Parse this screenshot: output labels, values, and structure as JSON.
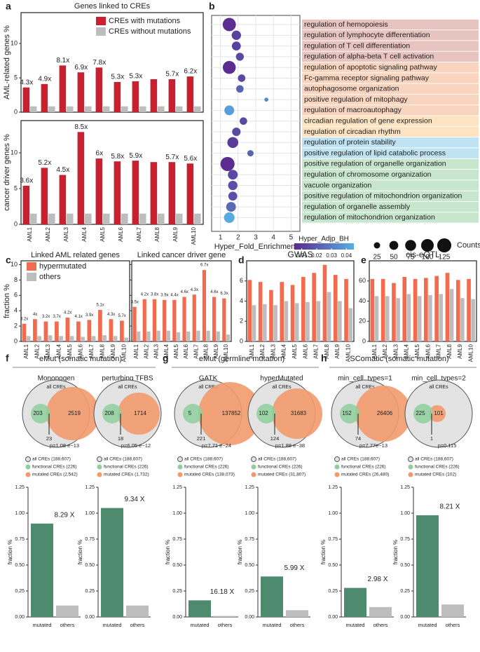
{
  "sections": [
    {
      "label": "f",
      "title": "eMut (somatic mutation)"
    },
    {
      "label": "g",
      "title": "eMut (germline mutation)"
    },
    {
      "label": "h",
      "title": "SComatic (somatic mutation)"
    }
  ],
  "chart_data": [
    {
      "type": "bar",
      "panel": "a",
      "title": "Genes linked to CREs",
      "ylabel": "AML-related genes %",
      "categories": [
        "AML1",
        "AML2",
        "AML3",
        "AML4",
        "AML5",
        "AML6",
        "AML7",
        "AML8",
        "AML9",
        "AML10"
      ],
      "series": [
        {
          "name": "CREs with mutations",
          "color": "#c8202f",
          "values": [
            3.6,
            4.1,
            6.8,
            5.8,
            6.5,
            4.4,
            4.5,
            4.8,
            4.8,
            5.2
          ]
        },
        {
          "name": "CREs without mutations",
          "color": "#bdbdbd",
          "values": [
            0.85,
            0.85,
            0.85,
            0.85,
            0.85,
            0.85,
            0.85,
            0.85,
            0.85,
            0.85
          ]
        }
      ],
      "annotations": [
        "4.3x",
        "4.9x",
        "8.1x",
        "6.9x",
        "7.8x",
        "5.3x",
        "5.3x",
        null,
        "5.7x",
        "6.2x"
      ],
      "ylim": [
        0,
        14.5
      ],
      "yticks": [
        0,
        5,
        10
      ]
    },
    {
      "type": "bar",
      "ylabel": "cancer driver genes %",
      "categories": [
        "AML1",
        "AML2",
        "AML3",
        "AML4",
        "AML5",
        "AML6",
        "AML7",
        "AML8",
        "AML9",
        "AML10"
      ],
      "series": [
        {
          "color": "#c8202f",
          "values": [
            5.4,
            7.9,
            6.9,
            12.9,
            9.2,
            8.8,
            8.9,
            8.7,
            8.7,
            8.5
          ]
        },
        {
          "color": "#bdbdbd",
          "values": [
            1.5,
            1.5,
            1.5,
            1.5,
            1.5,
            1.5,
            1.5,
            1.5,
            1.5,
            1.5
          ]
        }
      ],
      "annotations": [
        "3.6x",
        "5.2x",
        "4.5x",
        "8.5x",
        "6x",
        "5.8x",
        "5.9x",
        null,
        "5.7x",
        "5.6x"
      ],
      "ylim": [
        0,
        14.5
      ],
      "yticks": [
        0,
        5,
        10
      ]
    },
    {
      "type": "dot",
      "panel": "b",
      "xlabel": "Hyper_Fold_Enrichment",
      "categories": [
        "regulation of hemopoiesis",
        "regulation of lymphocyte differentiation",
        "regulation of T cell differentiation",
        "regulation of alpha-beta T cell activation",
        "regulation of apoptotic signaling pathway",
        "Fc-gamma receptor signaling pathway",
        "autophagosome organization",
        "positive regulation of mitophagy",
        "regulation of macroautophagy",
        "circadian regulation of gene expression",
        "regulation of circadian rhythm",
        "regulation of protein stability",
        "positive regulation of lipid catabolic process",
        "positive regulation of organelle organization",
        "regulation of chromosome organization",
        "vacuole organization",
        "positive regulation of mitochondrion organization",
        "regulation of organelle assembly",
        "regulation of mitochondrion organization"
      ],
      "x": [
        1.5,
        1.9,
        1.9,
        2.1,
        1.5,
        2.2,
        2.1,
        3.6,
        1.5,
        2.3,
        1.9,
        1.7,
        2.7,
        1.4,
        1.7,
        1.7,
        1.7,
        1.6,
        1.5
      ],
      "sizes": [
        110,
        55,
        50,
        40,
        105,
        35,
        35,
        10,
        60,
        35,
        45,
        75,
        25,
        125,
        60,
        55,
        50,
        60,
        70
      ],
      "color_values": [
        0.006,
        0.012,
        0.012,
        0.014,
        0.006,
        0.014,
        0.022,
        0.033,
        0.04,
        0.014,
        0.014,
        0.01,
        0.022,
        0.006,
        0.014,
        0.016,
        0.016,
        0.024,
        0.044
      ],
      "term_colors": [
        "#e8c4c0",
        "#e8c4c0",
        "#e8c4c0",
        "#e8c4c0",
        "#f9d4bf",
        "#f9d4bf",
        "#f9d4bf",
        "#f9d4bf",
        "#f9d4bf",
        "#fde3c1",
        "#fde3c1",
        "#bfe3f3",
        "#bfe3f3",
        "#c7e6cd",
        "#c7e6cd",
        "#c7e6cd",
        "#c7e6cd",
        "#c7e6cd",
        "#c7e6cd"
      ],
      "xlim": [
        0.5,
        5.5
      ],
      "xticks": [
        1,
        2,
        3,
        4,
        5
      ],
      "color_title": "Hyper_Adjp_BH",
      "clim": [
        0.005,
        0.045
      ],
      "cticks": [
        0.01,
        0.02,
        0.03,
        0.04
      ],
      "colors": [
        "#5b2a8e",
        "#58aee3"
      ],
      "size_title": "Counts",
      "size_ticks": [
        25,
        50,
        75,
        100,
        125
      ]
    },
    {
      "type": "bar",
      "panel": "c",
      "title": "Linked AML related genes",
      "ylabel": "fraction %",
      "categories": [
        "AML1",
        "AML2",
        "AML3",
        "AML4",
        "AML5",
        "AML6",
        "AML7",
        "AML8",
        "AML9",
        "AML10"
      ],
      "series": [
        {
          "name": "hypermutated",
          "color": "#f26b4f",
          "values": [
            2.3,
            2.9,
            2.6,
            2.6,
            3.1,
            2.6,
            2.8,
            4.1,
            2.9,
            2.7
          ]
        },
        {
          "name": "others",
          "color": "#bdbdbd",
          "values": [
            0.7,
            0.7,
            0.8,
            0.7,
            0.7,
            0.6,
            0.7,
            0.8,
            0.7,
            0.5
          ]
        }
      ],
      "annotations": [
        "3.2x",
        "4x",
        "3.2x",
        "3.7x",
        "4.2x",
        "4.1x",
        "3.9x",
        "5.1x",
        "4.3x",
        "5.7x"
      ],
      "ylim": [
        0,
        10.5
      ],
      "yticks": [
        0,
        2,
        4,
        6,
        8,
        10
      ]
    },
    {
      "type": "bar",
      "title": "Linked cancer driver gene",
      "categories": [
        "AML1",
        "AML2",
        "AML3",
        "AML4",
        "AML5",
        "AML6",
        "AML7",
        "AML8",
        "AML9",
        "AML10"
      ],
      "series": [
        {
          "color": "#f26b4f",
          "values": [
            4.5,
            5.5,
            5.5,
            5.4,
            5.4,
            5.8,
            6.1,
            9.3,
            5.8,
            5.6
          ]
        },
        {
          "color": "#bdbdbd",
          "values": [
            1.3,
            1.3,
            1.4,
            1.4,
            1.2,
            1.3,
            1.4,
            1.4,
            1.3,
            0.9
          ]
        }
      ],
      "annotations": [
        "3.5x",
        "4.2x",
        "3.8x",
        "3.9x",
        "4.4x",
        "4.6x",
        "4.3x",
        "6.7x",
        "4.6x",
        "6.3x"
      ],
      "ylim": [
        0,
        10.5
      ],
      "yticks": [
        0,
        2,
        4,
        6,
        8,
        10
      ]
    },
    {
      "type": "bar",
      "panel": "d",
      "title": "GWAS",
      "categories": [
        "AML1",
        "AML2",
        "AML3",
        "AML4",
        "AML5",
        "AML6",
        "AML7",
        "AML8",
        "AML9",
        "AML10"
      ],
      "series": [
        {
          "color": "#f26b4f",
          "values": [
            6.1,
            5.9,
            5.1,
            5.9,
            5.6,
            6.4,
            6.8,
            7.6,
            6.6,
            6.2
          ]
        },
        {
          "color": "#bdbdbd",
          "values": [
            3.6,
            3.7,
            3.6,
            4.0,
            3.8,
            3.9,
            4.0,
            4.9,
            4.0,
            3.3
          ]
        }
      ],
      "ylim": [
        0,
        8
      ],
      "yticks": [
        0,
        2,
        4,
        6
      ]
    },
    {
      "type": "bar",
      "panel": "e",
      "title": "cis-eQTL",
      "categories": [
        "AML1",
        "AML2",
        "AML3",
        "AML4",
        "AML5",
        "AML6",
        "AML7",
        "AML8",
        "AML9",
        "AML10"
      ],
      "series": [
        {
          "color": "#f26b4f",
          "values": [
            62,
            62,
            58,
            64,
            62,
            63,
            65,
            68,
            61,
            62
          ]
        },
        {
          "color": "#bdbdbd",
          "values": [
            45,
            45,
            43,
            47,
            45,
            46,
            47,
            52,
            43,
            42
          ]
        }
      ],
      "ylim": [
        0,
        80
      ],
      "yticks": [
        0,
        20,
        40,
        60
      ]
    },
    {
      "type": "venn",
      "title": "Monopogen",
      "all": "all CREs",
      "left": "203",
      "right": "2519",
      "overlap": "23",
      "p": "p=1.08 e−13",
      "legend": [
        "all CREs (188,607)",
        "functional CREs (226)",
        "mutated CREs (2,542)"
      ],
      "ylabel": "fraction %",
      "categories": [
        "mutated",
        "others"
      ],
      "values": [
        0.9,
        0.11
      ],
      "colors": [
        "#4e8a6e",
        "#bdbdbd"
      ],
      "annotation": "8.29 X",
      "ylim": [
        0,
        1.25
      ],
      "yticks": [
        {
          "value": 0,
          "label": "0.00"
        },
        {
          "value": 0.25,
          "label": "0.25"
        },
        {
          "value": 0.5,
          "label": "0.50"
        },
        {
          "value": 0.75,
          "label": "0.75"
        },
        {
          "value": 1,
          "label": "1.00"
        },
        {
          "value": 1.25,
          "label": "1.25"
        }
      ]
    },
    {
      "type": "venn",
      "title": "perturbing TFBS",
      "all": "all CREs",
      "left": "208",
      "right": "1714",
      "overlap": "18",
      "p": "p=6.05 e−12",
      "legend": [
        "all CREs (188,607)",
        "functional CREs (226)",
        "mutated CREs (1,732)"
      ],
      "ylabel": "fraction %",
      "categories": [
        "mutated",
        "others"
      ],
      "values": [
        1.05,
        0.11
      ],
      "colors": [
        "#4e8a6e",
        "#bdbdbd"
      ],
      "annotation": "9.34 X",
      "ylim": [
        0,
        1.25
      ],
      "yticks": [
        {
          "value": 0,
          "label": "0.00"
        },
        {
          "value": 0.25,
          "label": "0.25"
        },
        {
          "value": 0.5,
          "label": "0.50"
        },
        {
          "value": 0.75,
          "label": "0.75"
        },
        {
          "value": 1,
          "label": "1.00"
        },
        {
          "value": 1.25,
          "label": "1.25"
        }
      ]
    },
    {
      "type": "venn",
      "title": "GATK",
      "all": "all CREs",
      "left": "5",
      "right": "137852",
      "overlap": "221",
      "p": "p=7.71 e−24",
      "legend": [
        "all CREs (188,607)",
        "functional CREs (226)",
        "mutated CREs (138,073)"
      ],
      "ylabel": "fraction %",
      "categories": [
        "mutated",
        "others"
      ],
      "values": [
        0.16,
        0.01
      ],
      "colors": [
        "#4e8a6e",
        "#bdbdbd"
      ],
      "annotation": "16.18 X",
      "ylim": [
        0,
        1.25
      ],
      "yticks": [
        {
          "value": 0,
          "label": "0.00"
        },
        {
          "value": 0.25,
          "label": "0.25"
        },
        {
          "value": 0.5,
          "label": "0.50"
        },
        {
          "value": 0.75,
          "label": "0.75"
        },
        {
          "value": 1,
          "label": "1.00"
        },
        {
          "value": 1.25,
          "label": "1.25"
        }
      ]
    },
    {
      "type": "venn",
      "title": "hyperMutated",
      "all": "all CREs",
      "left": "102",
      "right": "31683",
      "overlap": "124",
      "p": "p=1.88 e−38",
      "legend": [
        "all CREs (188,607)",
        "functional CREs (226)",
        "mutated CREs (31,807)"
      ],
      "ylabel": "fraction %",
      "categories": [
        "mutated",
        "others"
      ],
      "values": [
        0.39,
        0.065
      ],
      "colors": [
        "#4e8a6e",
        "#bdbdbd"
      ],
      "annotation": "5.99 X",
      "ylim": [
        0,
        1.25
      ],
      "yticks": [
        {
          "value": 0,
          "label": "0.00"
        },
        {
          "value": 0.25,
          "label": "0.25"
        },
        {
          "value": 0.5,
          "label": "0.50"
        },
        {
          "value": 0.75,
          "label": "0.75"
        },
        {
          "value": 1,
          "label": "1.00"
        },
        {
          "value": 1.25,
          "label": "1.25"
        }
      ]
    },
    {
      "type": "venn",
      "title": "min_cell_types=1",
      "all": "all CREs",
      "left": "152",
      "right": "26406",
      "overlap": "74",
      "p": "p=7.77e−13",
      "legend": [
        "all CREs (188,607)",
        "functional CREs (226)",
        "mutated CREs (26,480)"
      ],
      "ylabel": "fraction %",
      "categories": [
        "mutated",
        "others"
      ],
      "values": [
        0.28,
        0.095
      ],
      "colors": [
        "#4e8a6e",
        "#bdbdbd"
      ],
      "annotation": "2.98 X",
      "ylim": [
        0,
        1.25
      ],
      "yticks": [
        {
          "value": 0,
          "label": "0.00"
        },
        {
          "value": 0.25,
          "label": "0.25"
        },
        {
          "value": 0.5,
          "label": "0.50"
        },
        {
          "value": 0.75,
          "label": "0.75"
        },
        {
          "value": 1,
          "label": "1.00"
        },
        {
          "value": 1.25,
          "label": "1.25"
        }
      ]
    },
    {
      "type": "venn",
      "title": "min_cell_types=2",
      "all": "all CREs",
      "left": "225",
      "right": "101",
      "overlap": "1",
      "p": "p=0.115",
      "legend": [
        "all CREs (188,607)",
        "functional CREs (226)",
        "mutated CREs (102)"
      ],
      "ylabel": "fraction %",
      "categories": [
        "mutated",
        "others"
      ],
      "values": [
        0.98,
        0.12
      ],
      "colors": [
        "#4e8a6e",
        "#bdbdbd"
      ],
      "annotation": "8.21 X",
      "ylim": [
        0,
        1.25
      ],
      "yticks": [
        {
          "value": 0,
          "label": "0.00"
        },
        {
          "value": 0.25,
          "label": "0.25"
        },
        {
          "value": 0.5,
          "label": "0.50"
        },
        {
          "value": 0.75,
          "label": "0.75"
        },
        {
          "value": 1,
          "label": "1.00"
        },
        {
          "value": 1.25,
          "label": "1.25"
        }
      ]
    }
  ]
}
